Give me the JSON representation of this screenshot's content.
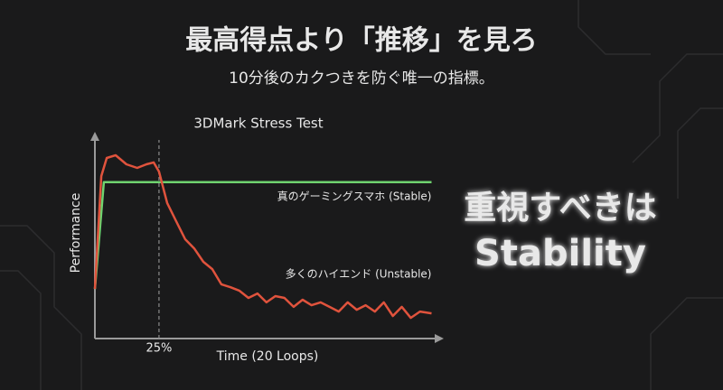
{
  "title": "最高得点より「推移」を見ろ",
  "subtitle": "10分後のカクつきを防ぐ唯一の指標。",
  "callout": [
    "重視すべきは",
    "Stability"
  ],
  "chart_data": {
    "type": "line",
    "title": "3DMark Stress Test",
    "x_label": "Time (20 Loops)",
    "y_label": "Performance",
    "xlim": [
      0,
      135
    ],
    "ylim": [
      0,
      100
    ],
    "xticks": [
      {
        "value": 25,
        "label": "25%"
      }
    ],
    "series": [
      {
        "name": "真のゲーミングスマホ (Stable)",
        "color": "#6fd36f",
        "x": [
          0,
          3.5,
          131.3
        ],
        "values": [
          24.4,
          77,
          77
        ]
      },
      {
        "name": "多くのハイエンド (Unstable)",
        "color": "#e0533d",
        "x": [
          0,
          2.5,
          4.6,
          8.1,
          12.3,
          16.5,
          20.1,
          22.9,
          25,
          28.2,
          31.7,
          35.2,
          38.7,
          42.3,
          45.8,
          49.3,
          52.8,
          56.3,
          59.9,
          63.4,
          66.9,
          70.4,
          73.9,
          77.5,
          81,
          84.5,
          88,
          91.5,
          95.1,
          98.6,
          102.1,
          105.6,
          109.2,
          112.7,
          116.2,
          119.7,
          123.2,
          126.8,
          131.3
        ],
        "values": [
          24.4,
          80,
          88.9,
          90.2,
          85.8,
          84,
          85.8,
          86.7,
          82.2,
          66.7,
          57.8,
          48.9,
          44.4,
          37.8,
          34.2,
          26.7,
          25.3,
          23.6,
          20,
          22.2,
          17.8,
          20.9,
          20,
          15.6,
          19.1,
          16.4,
          17.8,
          15.6,
          13.3,
          17.8,
          14.2,
          16.4,
          13.3,
          17.8,
          11.1,
          15.6,
          10.2,
          13.3,
          12.4
        ]
      }
    ]
  }
}
